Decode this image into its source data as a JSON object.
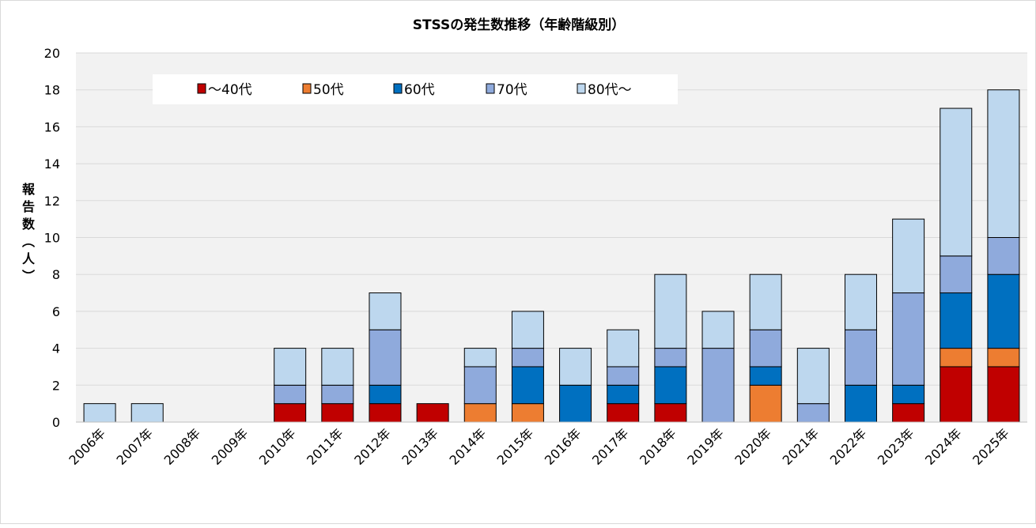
{
  "chart_data": {
    "type": "bar",
    "stacked": true,
    "title": "STSSの発生数推移（年齢階級別）",
    "xlabel": "",
    "ylabel": "報告数（人）",
    "ylim": [
      0,
      20
    ],
    "yticks": [
      0,
      2,
      4,
      6,
      8,
      10,
      12,
      14,
      16,
      18,
      20
    ],
    "grid": true,
    "legend_position": "top-left",
    "categories": [
      "2006年",
      "2007年",
      "2008年",
      "2009年",
      "2010年",
      "2011年",
      "2012年",
      "2013年",
      "2014年",
      "2015年",
      "2016年",
      "2017年",
      "2018年",
      "2019年",
      "2020年",
      "2021年",
      "2022年",
      "2023年",
      "2024年",
      "2025年"
    ],
    "series": [
      {
        "name": "～40代",
        "color": "#c00000",
        "values": [
          0,
          0,
          0,
          0,
          1,
          1,
          1,
          1,
          0,
          0,
          0,
          1,
          1,
          0,
          0,
          0,
          0,
          1,
          3,
          3
        ]
      },
      {
        "name": "50代",
        "color": "#ed7d31",
        "values": [
          0,
          0,
          0,
          0,
          0,
          0,
          0,
          0,
          1,
          1,
          0,
          0,
          0,
          0,
          2,
          0,
          0,
          0,
          1,
          1
        ]
      },
      {
        "name": "60代",
        "color": "#0070c0",
        "values": [
          0,
          0,
          0,
          0,
          0,
          0,
          1,
          0,
          0,
          2,
          2,
          1,
          2,
          0,
          1,
          0,
          2,
          1,
          3,
          4
        ]
      },
      {
        "name": "70代",
        "color": "#8faadc",
        "values": [
          0,
          0,
          0,
          0,
          1,
          1,
          3,
          0,
          2,
          1,
          0,
          1,
          1,
          4,
          2,
          1,
          3,
          5,
          2,
          2
        ]
      },
      {
        "name": "80代～",
        "color": "#bdd7ee",
        "values": [
          1,
          1,
          0,
          0,
          2,
          2,
          2,
          0,
          1,
          2,
          2,
          2,
          4,
          2,
          3,
          3,
          3,
          4,
          8,
          8
        ]
      }
    ],
    "plot_background": "#f2f2f2"
  }
}
